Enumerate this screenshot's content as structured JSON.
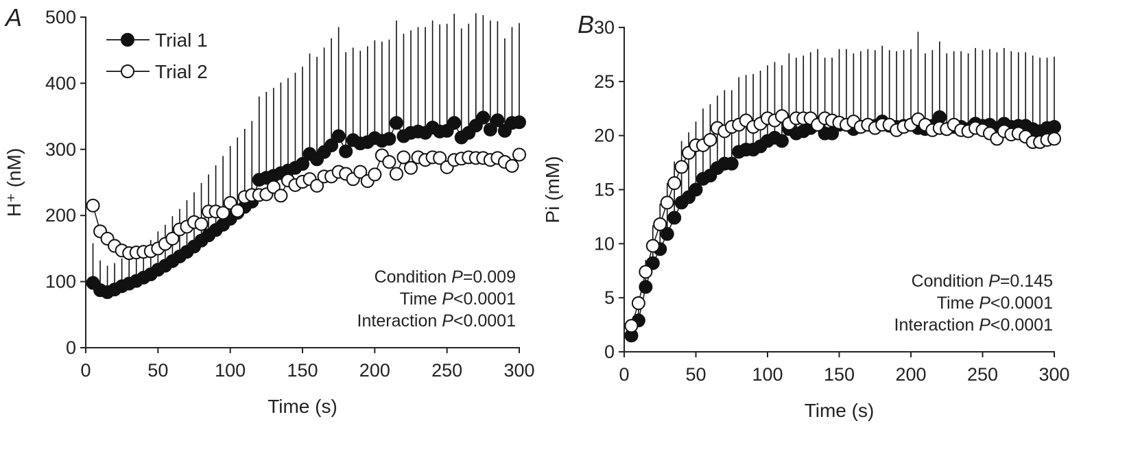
{
  "chart_data": [
    {
      "panel": "A",
      "type": "line",
      "title": "",
      "xlabel": "Time (s)",
      "ylabel": "H⁺ (nM)",
      "xlim": [
        0,
        300
      ],
      "ylim": [
        0,
        500
      ],
      "xticks": [
        0,
        50,
        100,
        150,
        200,
        250,
        300
      ],
      "yticks": [
        0,
        100,
        200,
        300,
        400,
        500
      ],
      "legend_position": "top-left",
      "annotations": [
        {
          "label": "Condition ",
          "p": "P",
          "value": "=0.009"
        },
        {
          "label": "Time ",
          "p": "P",
          "value": "<0.0001"
        },
        {
          "label": "Interaction ",
          "p": "P",
          "value": "<0.0001"
        }
      ],
      "x": [
        5,
        10,
        15,
        20,
        25,
        30,
        35,
        40,
        45,
        50,
        55,
        60,
        65,
        70,
        75,
        80,
        85,
        90,
        95,
        100,
        105,
        110,
        115,
        120,
        125,
        130,
        135,
        140,
        145,
        150,
        155,
        160,
        165,
        170,
        175,
        180,
        185,
        190,
        195,
        200,
        205,
        210,
        215,
        220,
        225,
        230,
        235,
        240,
        245,
        250,
        255,
        260,
        265,
        270,
        275,
        280,
        285,
        290,
        295,
        300
      ],
      "series": [
        {
          "name": "Trial 1",
          "marker": "filled",
          "values": [
            98,
            87,
            84,
            88,
            93,
            97,
            101,
            106,
            111,
            118,
            124,
            131,
            138,
            145,
            153,
            162,
            170,
            178,
            186,
            195,
            204,
            213,
            221,
            254,
            257,
            260,
            264,
            268,
            272,
            278,
            293,
            285,
            296,
            306,
            320,
            297,
            314,
            309,
            311,
            317,
            313,
            316,
            340,
            320,
            325,
            327,
            325,
            333,
            327,
            328,
            340,
            318,
            325,
            336,
            348,
            330,
            344,
            328,
            340,
            341
          ],
          "errors": [
            60,
            45,
            40,
            40,
            42,
            45,
            45,
            48,
            52,
            58,
            62,
            68,
            72,
            78,
            82,
            87,
            92,
            98,
            104,
            110,
            114,
            118,
            122,
            126,
            130,
            133,
            137,
            140,
            144,
            147,
            152,
            155,
            158,
            162,
            165,
            150,
            140,
            140,
            145,
            148,
            150,
            150,
            155,
            155,
            155,
            158,
            160,
            162,
            162,
            162,
            165,
            165,
            165,
            170,
            155,
            165,
            150,
            140,
            145,
            150
          ]
        },
        {
          "name": "Trial 2",
          "marker": "open",
          "values": [
            215,
            176,
            165,
            154,
            147,
            143,
            144,
            145,
            146,
            150,
            157,
            165,
            179,
            183,
            190,
            187,
            206,
            206,
            204,
            219,
            207,
            228,
            231,
            231,
            232,
            243,
            230,
            253,
            246,
            251,
            255,
            245,
            259,
            259,
            266,
            263,
            255,
            266,
            252,
            262,
            291,
            281,
            263,
            288,
            272,
            288,
            284,
            288,
            287,
            273,
            284,
            286,
            288,
            287,
            287,
            284,
            287,
            281,
            275,
            292
          ]
        }
      ]
    },
    {
      "panel": "B",
      "type": "line",
      "title": "",
      "xlabel": "Time (s)",
      "ylabel": "Pi (mM)",
      "xlim": [
        0,
        300
      ],
      "ylim": [
        0,
        30
      ],
      "xticks": [
        0,
        50,
        100,
        150,
        200,
        250,
        300
      ],
      "yticks": [
        0,
        5,
        10,
        15,
        20,
        25,
        30
      ],
      "annotations": [
        {
          "label": "Condition ",
          "p": "P",
          "value": "=0.145"
        },
        {
          "label": "Time ",
          "p": "P",
          "value": "<0.0001"
        },
        {
          "label": "Interaction ",
          "p": "P",
          "value": "<0.0001"
        }
      ],
      "x": [
        5,
        10,
        15,
        20,
        25,
        30,
        35,
        40,
        45,
        50,
        55,
        60,
        65,
        70,
        75,
        80,
        85,
        90,
        95,
        100,
        105,
        110,
        115,
        120,
        125,
        130,
        135,
        140,
        145,
        150,
        155,
        160,
        165,
        170,
        175,
        180,
        185,
        190,
        195,
        200,
        205,
        210,
        215,
        220,
        225,
        230,
        235,
        240,
        245,
        250,
        255,
        260,
        265,
        270,
        275,
        280,
        285,
        290,
        295,
        300
      ],
      "series": [
        {
          "name": "Trial 1",
          "marker": "filled",
          "values": [
            1.5,
            2.9,
            6.0,
            8.2,
            9.5,
            10.9,
            12.4,
            13.8,
            14.3,
            15.0,
            16.0,
            16.3,
            17.0,
            17.4,
            17.4,
            18.5,
            18.7,
            18.7,
            19.0,
            19.5,
            19.8,
            19.5,
            20.6,
            20.2,
            20.4,
            20.7,
            21.0,
            20.2,
            20.2,
            21.0,
            21.0,
            20.6,
            20.8,
            21.0,
            20.9,
            21.3,
            20.9,
            20.8,
            20.9,
            21.0,
            20.7,
            20.6,
            20.9,
            21.7,
            20.6,
            20.8,
            20.8,
            20.6,
            21.1,
            20.9,
            21.0,
            20.7,
            21.1,
            20.8,
            20.9,
            20.9,
            20.6,
            20.4,
            20.7,
            20.8
          ],
          "errors": [
            0.8,
            1.8,
            2.5,
            3.5,
            4.2,
            4.7,
            5.2,
            5.7,
            6.0,
            6.3,
            6.5,
            6.6,
            6.7,
            6.8,
            6.8,
            6.9,
            6.9,
            7.0,
            7.0,
            7.0,
            7.0,
            7.0,
            7.0,
            7.0,
            7.0,
            7.0,
            7.0,
            7.0,
            7.0,
            7.0,
            7.0,
            7.0,
            7.0,
            7.0,
            7.0,
            7.0,
            7.0,
            7.0,
            7.0,
            7.0,
            8.9,
            7.0,
            7.0,
            7.0,
            7.0,
            7.0,
            7.0,
            7.0,
            7.0,
            7.0,
            7.0,
            7.0,
            7.0,
            7.0,
            6.8,
            6.8,
            6.8,
            6.8,
            6.5,
            6.5
          ]
        },
        {
          "name": "Trial 2",
          "marker": "open",
          "values": [
            2.4,
            4.5,
            7.4,
            9.8,
            11.8,
            13.8,
            15.6,
            17.1,
            18.4,
            19.1,
            19.1,
            19.6,
            20.7,
            20.4,
            20.8,
            21.0,
            21.4,
            20.8,
            21.1,
            21.6,
            21.4,
            21.8,
            21.1,
            21.6,
            21.6,
            21.6,
            21.0,
            21.6,
            21.4,
            21.2,
            21.0,
            21.3,
            20.8,
            21.0,
            20.7,
            21.0,
            21.0,
            20.5,
            20.8,
            21.0,
            21.5,
            21.0,
            20.5,
            20.7,
            20.6,
            21.0,
            20.5,
            20.4,
            20.7,
            20.5,
            20.2,
            19.7,
            20.4,
            20.1,
            20.2,
            19.9,
            19.4,
            19.4,
            19.6,
            19.7
          ]
        }
      ]
    }
  ],
  "panels": [
    {
      "letter": "A"
    },
    {
      "letter": "B"
    }
  ]
}
